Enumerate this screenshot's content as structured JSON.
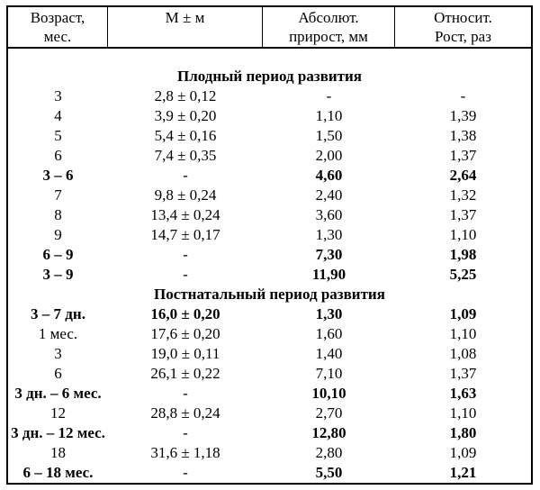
{
  "table": {
    "header": [
      {
        "line1": "Возраст,",
        "line2": "мес."
      },
      {
        "line1": "М ± м",
        "line2": ""
      },
      {
        "line1": "Абсолют.",
        "line2": "прирост, мм"
      },
      {
        "line1": "Относит.",
        "line2": "Рост, раз"
      }
    ],
    "sections": [
      {
        "title": "Плодный период развития",
        "rows": [
          {
            "age": "3",
            "m": "2,8 ± 0,12",
            "abs": "-",
            "rel": "-",
            "bold": false
          },
          {
            "age": "4",
            "m": "3,9 ± 0,20",
            "abs": "1,10",
            "rel": "1,39",
            "bold": false
          },
          {
            "age": "5",
            "m": "5,4 ± 0,16",
            "abs": "1,50",
            "rel": "1,38",
            "bold": false
          },
          {
            "age": "6",
            "m": "7,4 ± 0,35",
            "abs": "2,00",
            "rel": "1,37",
            "bold": false
          },
          {
            "age": "3 – 6",
            "m": "-",
            "abs": "4,60",
            "rel": "2,64",
            "bold": true
          },
          {
            "age": "7",
            "m": "9,8 ± 0,24",
            "abs": "2,40",
            "rel": "1,32",
            "bold": false
          },
          {
            "age": "8",
            "m": "13,4 ± 0,24",
            "abs": "3,60",
            "rel": "1,37",
            "bold": false
          },
          {
            "age": "9",
            "m": "14,7 ± 0,17",
            "abs": "1,30",
            "rel": "1,10",
            "bold": false
          },
          {
            "age": "6 – 9",
            "m": "-",
            "abs": "7,30",
            "rel": "1,98",
            "bold": true
          },
          {
            "age": "3 – 9",
            "m": "-",
            "abs": "11,90",
            "rel": "5,25",
            "bold": true
          }
        ]
      },
      {
        "title": "Постнатальный период развития",
        "rows": [
          {
            "age": "3 – 7 дн.",
            "m": "16,0 ± 0,20",
            "abs": "1,30",
            "rel": "1,09",
            "bold": true
          },
          {
            "age": "1 мес.",
            "m": "17,6 ± 0,20",
            "abs": "1,60",
            "rel": "1,10",
            "bold": false
          },
          {
            "age": "3",
            "m": "19,0 ± 0,11",
            "abs": "1,40",
            "rel": "1,08",
            "bold": false
          },
          {
            "age": "6",
            "m": "26,1 ± 0,22",
            "abs": "7,10",
            "rel": "1,37",
            "bold": false
          },
          {
            "age": "3 дн. – 6 мес.",
            "m": "-",
            "abs": "10,10",
            "rel": "1,63",
            "bold": true
          },
          {
            "age": "12",
            "m": "28,8 ± 0,24",
            "abs": "2,70",
            "rel": "1,10",
            "bold": false
          },
          {
            "age": "3 дн. – 12 мес.",
            "m": "-",
            "abs": "12,80",
            "rel": "1,80",
            "bold": true
          },
          {
            "age": "18",
            "m": "31,6 ± 1,18",
            "abs": "2,80",
            "rel": "1,09",
            "bold": false
          },
          {
            "age": "6 – 18 мес.",
            "m": "-",
            "abs": "5,50",
            "rel": "1,21",
            "bold": true
          }
        ]
      }
    ]
  },
  "colors": {
    "text": "#000000",
    "border": "#000000",
    "background": "#ffffff"
  }
}
